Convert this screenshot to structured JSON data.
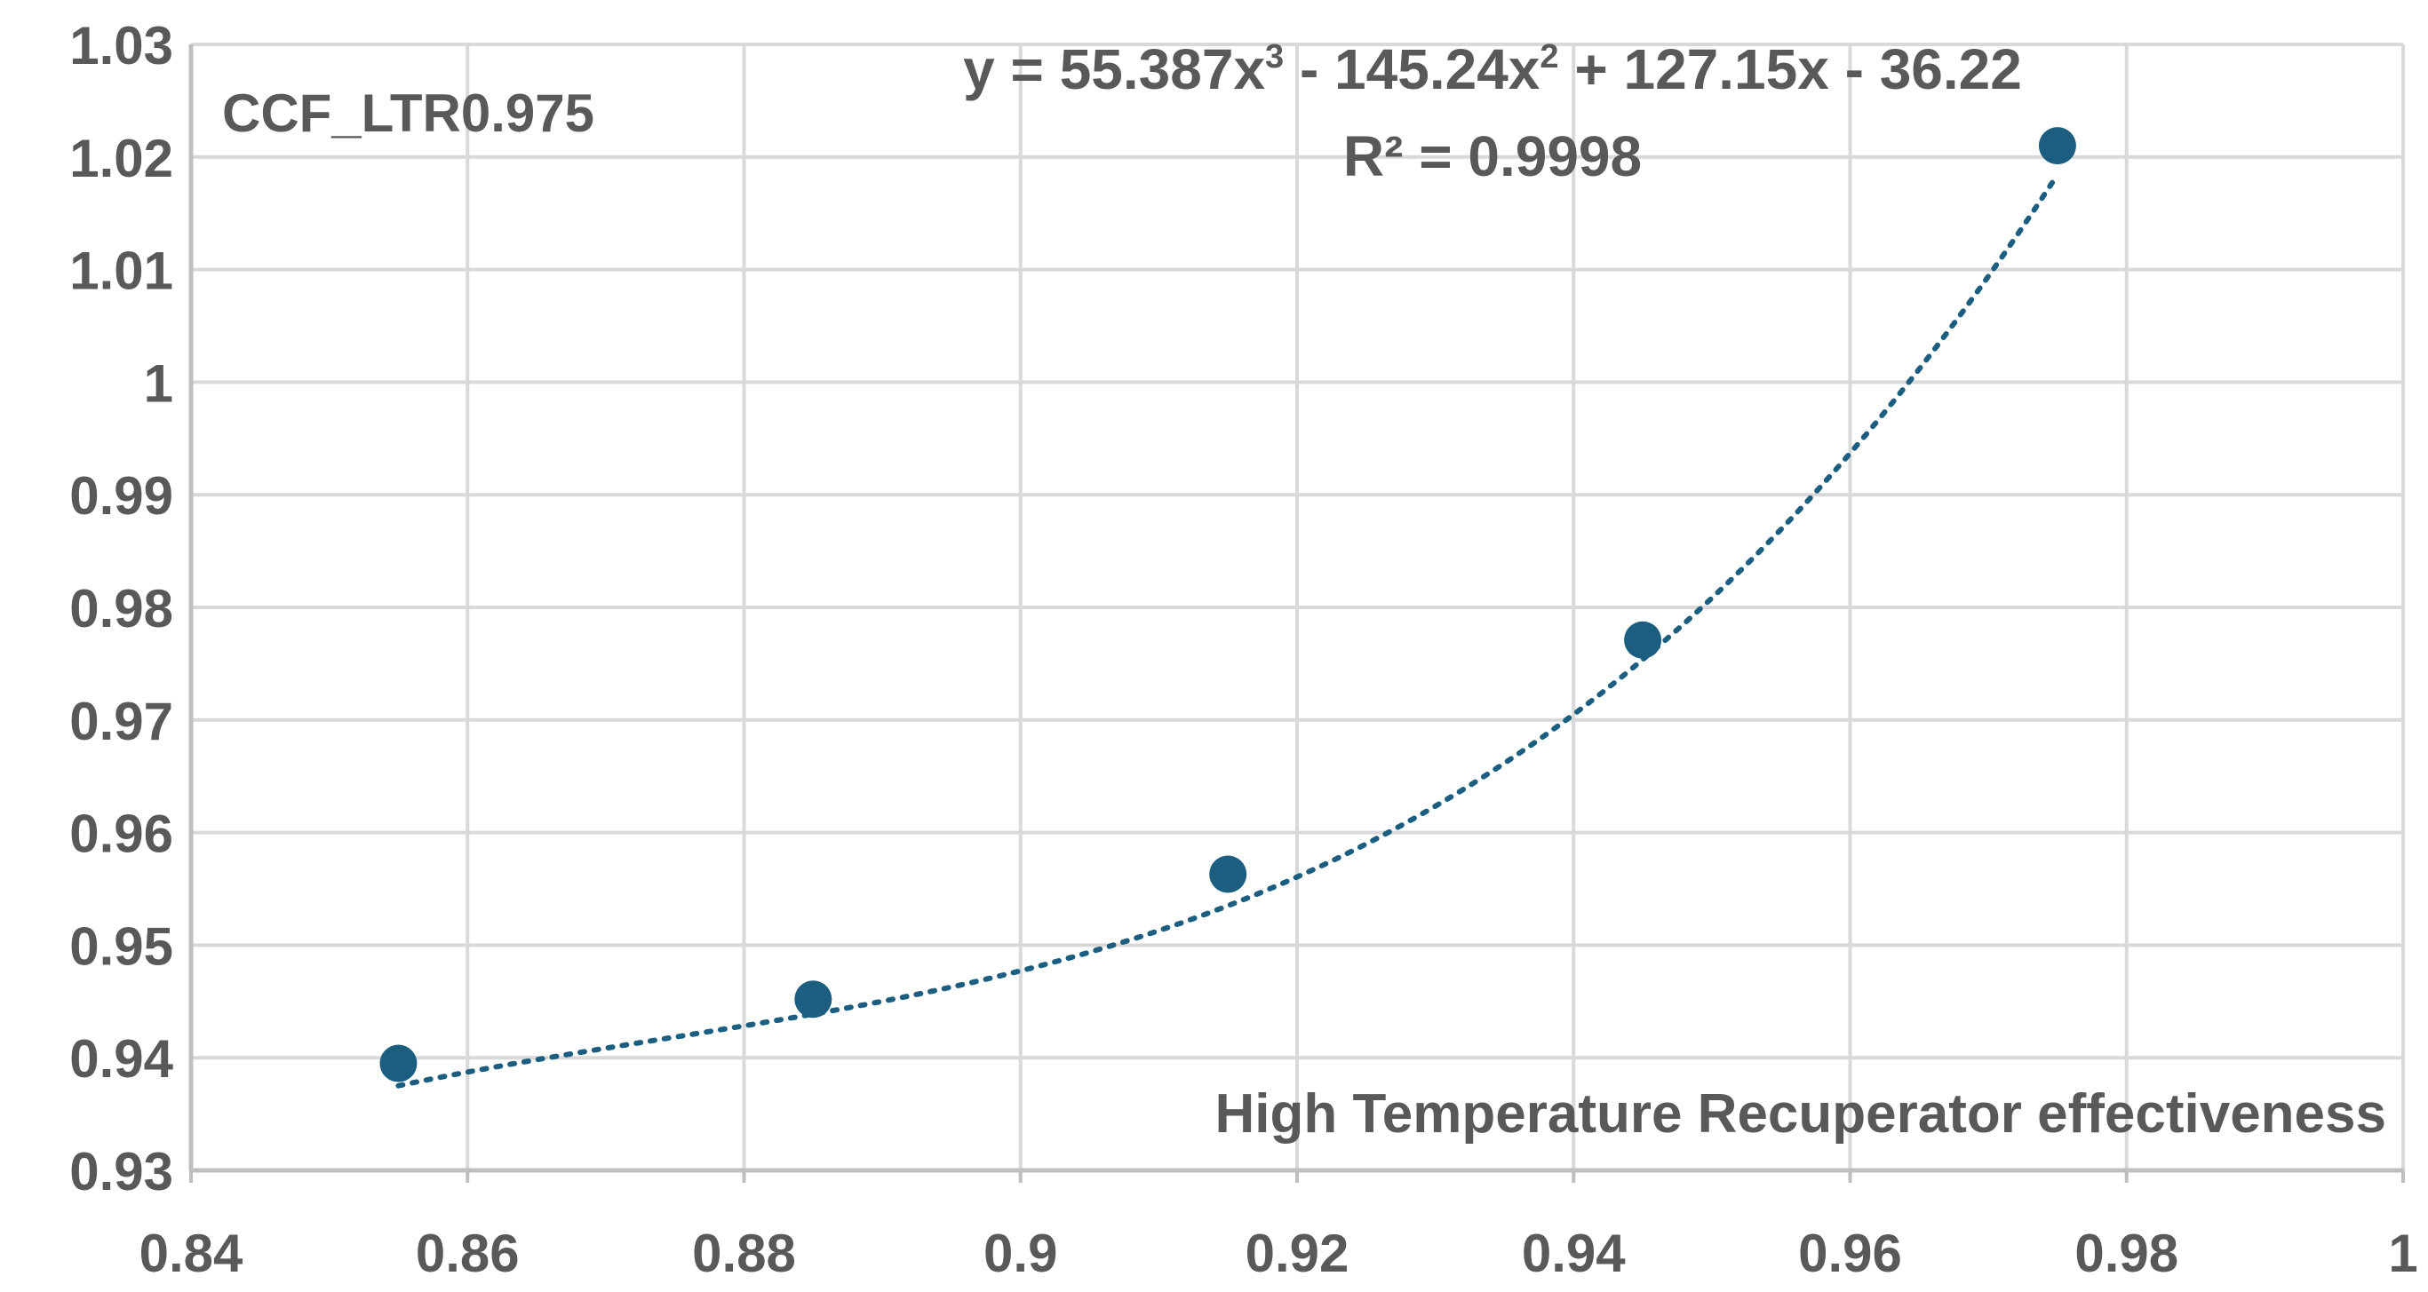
{
  "chart_data": {
    "type": "scatter",
    "title": "",
    "series_label": "CCF_LTR0.975",
    "xlabel": "High Temperature Recuperator effectiveness",
    "ylabel": "",
    "xlim": [
      0.84,
      1.0
    ],
    "ylim": [
      0.93,
      1.03
    ],
    "x_ticks": [
      "0.84",
      "0.86",
      "0.88",
      "0.9",
      "0.92",
      "0.94",
      "0.96",
      "0.98",
      "1"
    ],
    "y_ticks": [
      "0.93",
      "0.94",
      "0.95",
      "0.96",
      "0.97",
      "0.98",
      "0.99",
      "1",
      "1.01",
      "1.02",
      "1.03"
    ],
    "grid": true,
    "series": [
      {
        "x": [
          0.855,
          0.885,
          0.915,
          0.945,
          0.975
        ],
        "y": [
          0.9395,
          0.9452,
          0.9563,
          0.9771,
          1.021
        ]
      }
    ],
    "trendline": {
      "type": "polynomial",
      "order": 3,
      "coefficients": [
        55.387,
        -145.24,
        127.15,
        -36.22
      ],
      "equation_parts": [
        "y = 55.387x",
        "3",
        " - 145.24x",
        "2",
        " + 127.15x - 36.22"
      ],
      "r2_label": "R² = 0.9998",
      "style": "dotted"
    },
    "colors": {
      "marker": "#1b5e80",
      "trendline": "#1b5e80",
      "grid": "#d9d9d9",
      "axis": "#bfbfbf",
      "text": "#595959"
    }
  }
}
